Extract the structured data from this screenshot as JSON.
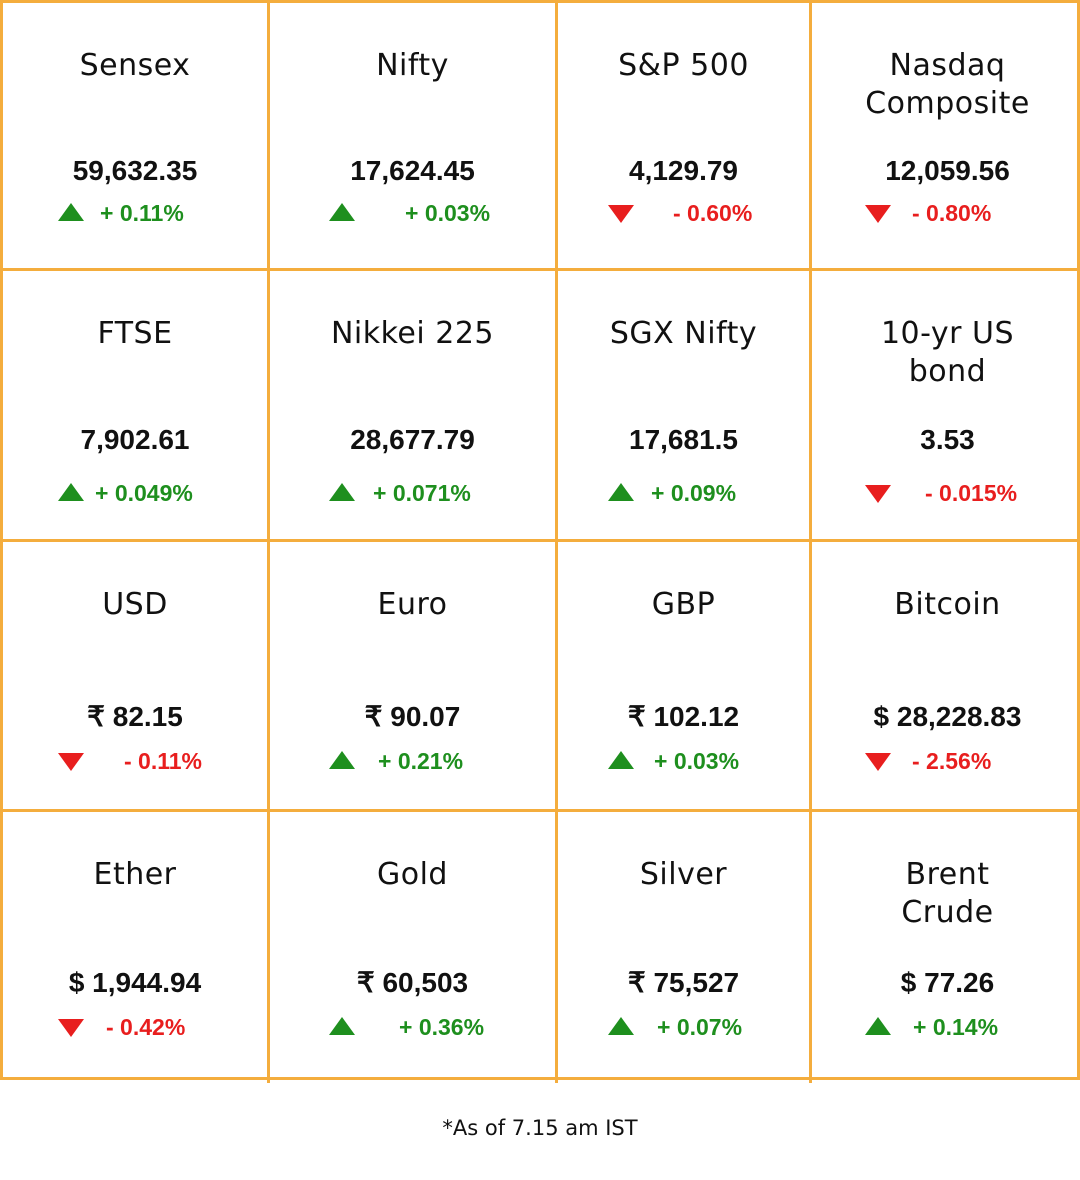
{
  "colors": {
    "border": "#f4ad3d",
    "up": "#1e8f1e",
    "down": "#e81e1e",
    "text": "#111111"
  },
  "cells": [
    {
      "name": "Sensex",
      "value": "59,632.35",
      "change": "+ 0.11%",
      "direction": "up",
      "icon": "up-triangle-icon"
    },
    {
      "name": "Nifty",
      "value": "17,624.45",
      "change": "+ 0.03%",
      "direction": "up",
      "icon": "up-triangle-icon"
    },
    {
      "name": "S&P 500",
      "value": "4,129.79",
      "change": "- 0.60%",
      "direction": "down",
      "icon": "down-triangle-icon"
    },
    {
      "name": "Nasdaq\nComposite",
      "value": "12,059.56",
      "change": "- 0.80%",
      "direction": "down",
      "icon": "down-triangle-icon"
    },
    {
      "name": "FTSE",
      "value": "7,902.61",
      "change": "+ 0.049%",
      "direction": "up",
      "icon": "up-triangle-icon"
    },
    {
      "name": "Nikkei 225",
      "value": "28,677.79",
      "change": "+ 0.071%",
      "direction": "up",
      "icon": "up-triangle-icon"
    },
    {
      "name": "SGX Nifty",
      "value": "17,681.5",
      "change": "+ 0.09%",
      "direction": "up",
      "icon": "up-triangle-icon"
    },
    {
      "name": "10-yr US\nbond",
      "value": "3.53",
      "change": "- 0.015%",
      "direction": "down",
      "icon": "down-triangle-icon"
    },
    {
      "name": "USD",
      "value": "₹ 82.15",
      "change": "- 0.11%",
      "direction": "down",
      "icon": "down-triangle-icon"
    },
    {
      "name": "Euro",
      "value": "₹ 90.07",
      "change": "+ 0.21%",
      "direction": "up",
      "icon": "up-triangle-icon"
    },
    {
      "name": "GBP",
      "value": "₹ 102.12",
      "change": "+ 0.03%",
      "direction": "up",
      "icon": "up-triangle-icon"
    },
    {
      "name": "Bitcoin",
      "value": "$ 28,228.83",
      "change": "- 2.56%",
      "direction": "down",
      "icon": "down-triangle-icon"
    },
    {
      "name": "Ether",
      "value": "$ 1,944.94",
      "change": "- 0.42%",
      "direction": "down",
      "icon": "down-triangle-icon"
    },
    {
      "name": "Gold",
      "value": "₹ 60,503",
      "change": "+ 0.36%",
      "direction": "up",
      "icon": "up-triangle-icon"
    },
    {
      "name": "Silver",
      "value": "₹ 75,527",
      "change": "+ 0.07%",
      "direction": "up",
      "icon": "up-triangle-icon"
    },
    {
      "name": "Brent\nCrude",
      "value": "$ 77.26",
      "change": "+ 0.14%",
      "direction": "up",
      "icon": "up-triangle-icon"
    }
  ],
  "footnote": "*As of 7.15 am IST"
}
